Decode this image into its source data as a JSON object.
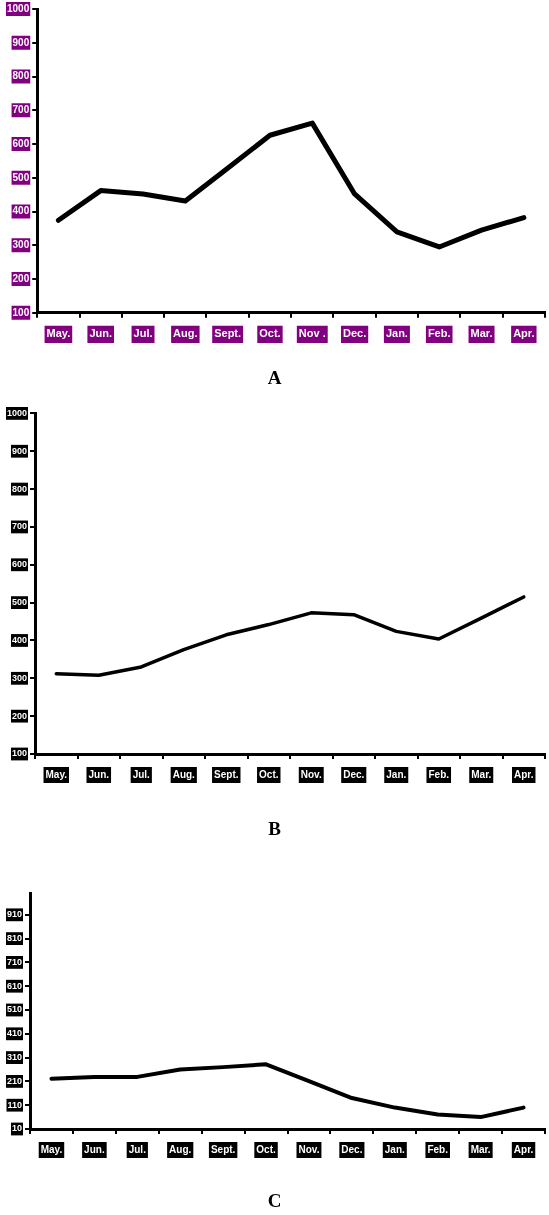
{
  "chart_data": [
    {
      "type": "line",
      "title": "A",
      "categories": [
        "May.",
        "Jun.",
        "Jul.",
        "Aug.",
        "Sept.",
        "Oct.",
        "Nov .",
        "Dec.",
        "Jan.",
        "Feb.",
        "Mar.",
        "Apr."
      ],
      "series": [
        {
          "color": "#000000",
          "values": [
            374,
            462,
            452,
            431,
            528,
            626,
            662,
            452,
            340,
            295,
            345,
            382
          ]
        }
      ],
      "ylim": [
        100,
        1000
      ],
      "yticks": [
        100,
        200,
        300,
        400,
        500,
        600,
        700,
        800,
        900,
        1000
      ],
      "legend": false,
      "marker": "none"
    },
    {
      "type": "line",
      "title": "B",
      "categories": [
        "May.",
        "Jun.",
        "Jul.",
        "Aug.",
        "Sept.",
        "Oct.",
        "Nov.",
        "Dec.",
        "Jan.",
        "Feb.",
        "Mar.",
        "Apr."
      ],
      "series": [
        {
          "color": "#000000",
          "values": [
            312,
            308,
            330,
            376,
            415,
            442,
            473,
            468,
            424,
            404,
            459,
            515
          ]
        }
      ],
      "ylim": [
        100,
        1000
      ],
      "yticks": [
        100,
        200,
        300,
        400,
        500,
        600,
        700,
        800,
        900,
        1000
      ],
      "legend": false,
      "marker": "none"
    },
    {
      "type": "line",
      "title": "C",
      "categories": [
        "May.",
        "Jun.",
        "Jul.",
        "Aug.",
        "Sept.",
        "Oct.",
        "Nov.",
        "Dec.",
        "Jan.",
        "Feb.",
        "Mar.",
        "Apr."
      ],
      "series": [
        {
          "color": "#000000",
          "values": [
            221,
            229,
            229,
            260,
            270,
            282,
            211,
            140,
            100,
            71,
            60,
            100
          ]
        }
      ],
      "ylim": [
        10,
        1000
      ],
      "yticks": [
        10,
        110,
        210,
        310,
        410,
        510,
        610,
        710,
        810,
        910
      ],
      "legend": false,
      "marker": "none"
    }
  ]
}
